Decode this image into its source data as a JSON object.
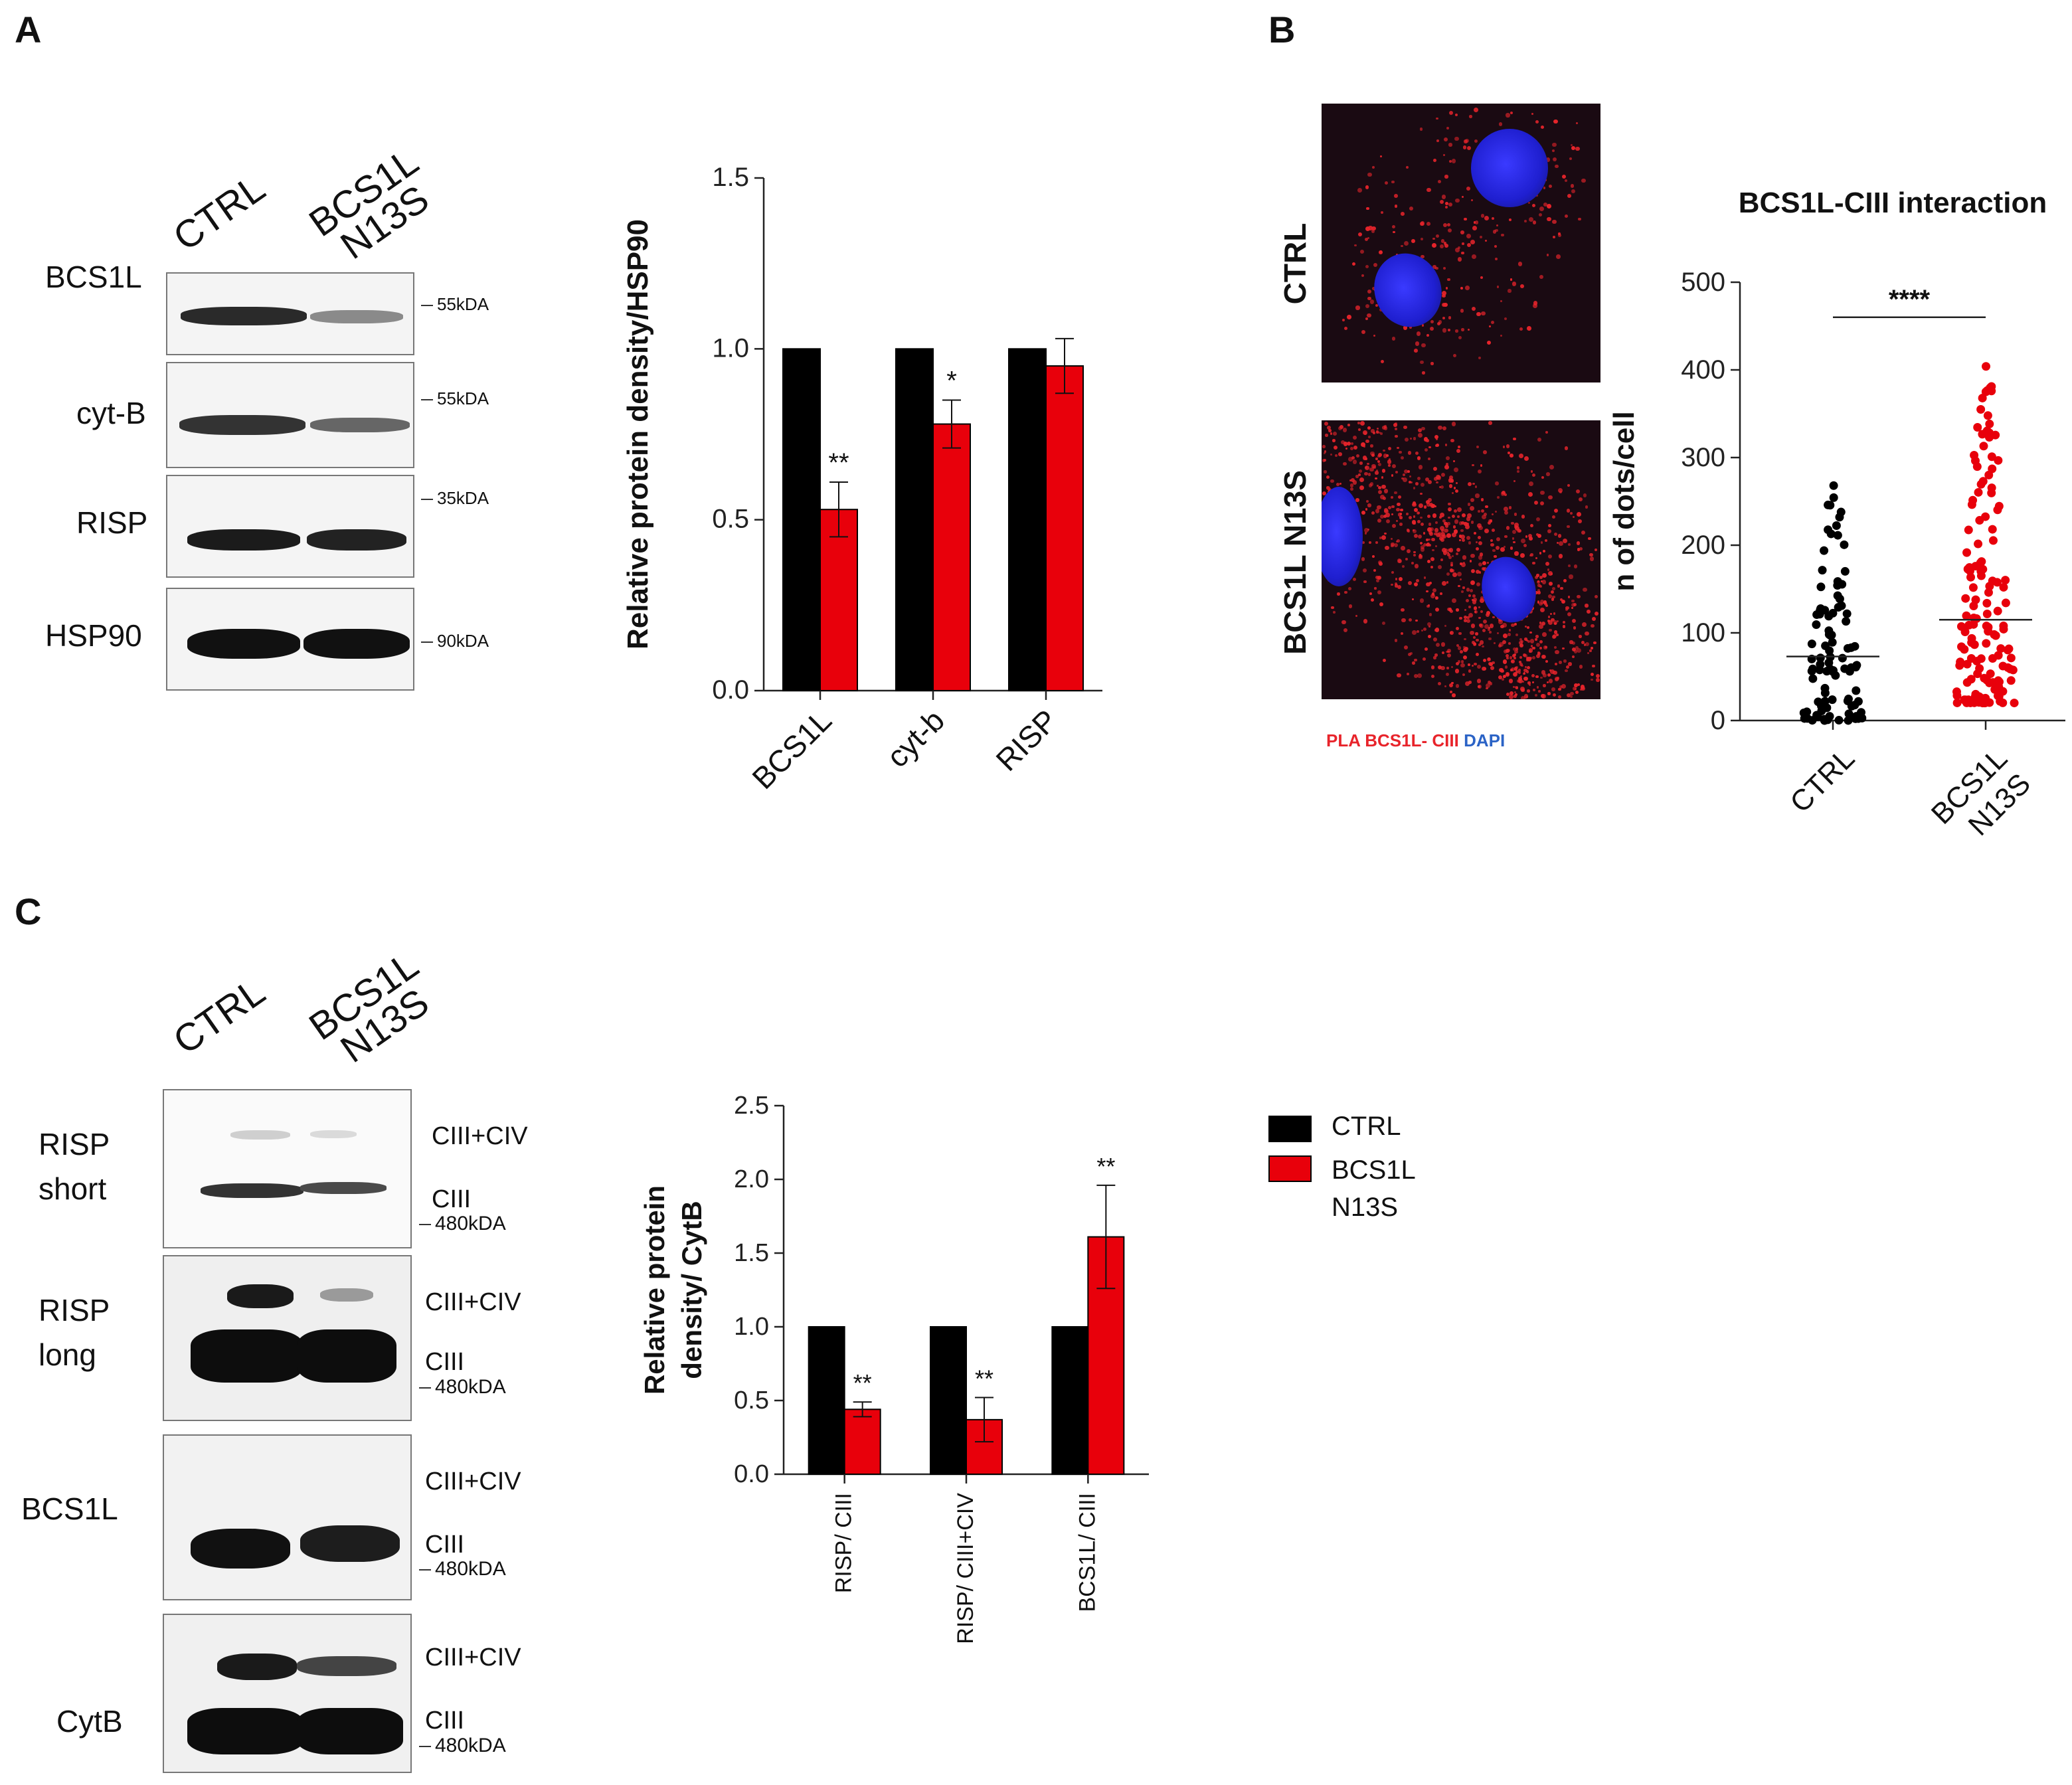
{
  "panels": {
    "a": "A",
    "b": "B",
    "c": "C"
  },
  "colors": {
    "ctrl": "#000000",
    "mut": "#e8000b",
    "pla_red": "#e8242b",
    "dapi_blue": "#2b63c6"
  },
  "panelA": {
    "lanes": [
      "CTRL",
      "BCS1L\nN13S"
    ],
    "rows": [
      {
        "label": "BCS1L",
        "kda": "55kDA"
      },
      {
        "label": "cyt-B",
        "kda": "55kDA"
      },
      {
        "label": "RISP",
        "kda": "35kDA"
      },
      {
        "label": "HSP90",
        "kda": "90kDA"
      }
    ]
  },
  "panelB": {
    "rows": [
      "CTRL",
      "BCS1L N13S"
    ],
    "caption_red": "PLA BCS1L- CIII",
    "caption_blue": "DAPI"
  },
  "panelC": {
    "lanes": [
      "CTRL",
      "BCS1L\nN13S"
    ],
    "rows": [
      {
        "label": "RISP\nshort",
        "top": "CIII+CIV",
        "bottom": "CIII",
        "kda": "480kDA"
      },
      {
        "label": "RISP\nlong",
        "top": "CIII+CIV",
        "bottom": "CIII",
        "kda": "480kDA"
      },
      {
        "label": "BCS1L",
        "top": "CIII+CIV",
        "bottom": "CIII",
        "kda": "480kDA"
      },
      {
        "label": "CytB",
        "top": "CIII+CIV",
        "bottom": "CIII",
        "kda": "480kDA"
      }
    ],
    "legend": [
      {
        "label": "CTRL"
      },
      {
        "label": "BCS1L\nN13S"
      }
    ]
  },
  "chart_data": [
    {
      "type": "bar",
      "title": "",
      "xlabel": "",
      "ylabel": "Relative protein density/HSP90",
      "ylim": [
        0,
        1.5
      ],
      "yticks": [
        "0.0",
        "0.5",
        "1.0",
        "1.5"
      ],
      "categories": [
        "BCS1L",
        "cyt-b",
        "RISP"
      ],
      "series": [
        {
          "values": [
            1.0,
            1.0,
            1.0
          ],
          "errors": [
            0,
            0,
            0
          ]
        },
        {
          "values": [
            0.53,
            0.78,
            0.95
          ],
          "errors": [
            0.08,
            0.07,
            0.08
          ]
        }
      ],
      "annotations": [
        "**",
        "*",
        ""
      ]
    },
    {
      "type": "scatter",
      "title": "BCS1L-CIII interaction",
      "xlabel": "",
      "ylabel": "n of dots/cell",
      "ylim": [
        0,
        500
      ],
      "yticks": [
        "0",
        "100",
        "200",
        "300",
        "400",
        "500"
      ],
      "categories": [
        "CTRL",
        "BCS1L\nN13S"
      ],
      "means": [
        73,
        115
      ],
      "n_points": [
        100,
        150
      ],
      "ranges": [
        [
          0,
          268
        ],
        [
          20,
          404
        ]
      ],
      "significance": "****"
    },
    {
      "type": "bar",
      "title": "",
      "xlabel": "",
      "ylabel": "Relative protein\ndensity/ CytB",
      "ylim": [
        0,
        2.5
      ],
      "yticks": [
        "0.0",
        "0.5",
        "1.0",
        "1.5",
        "2.0",
        "2.5"
      ],
      "categories": [
        "RISP/ CIII",
        "RISP/ CIII+CIV",
        "BCS1L/ CIII"
      ],
      "series": [
        {
          "name": "CTRL",
          "values": [
            1.0,
            1.0,
            1.0
          ],
          "errors": [
            0,
            0,
            0
          ]
        },
        {
          "name": "BCS1L N13S",
          "values": [
            0.44,
            0.37,
            1.61
          ],
          "errors": [
            0.05,
            0.15,
            0.35
          ]
        }
      ],
      "annotations": [
        "**",
        "**",
        "**"
      ]
    }
  ]
}
